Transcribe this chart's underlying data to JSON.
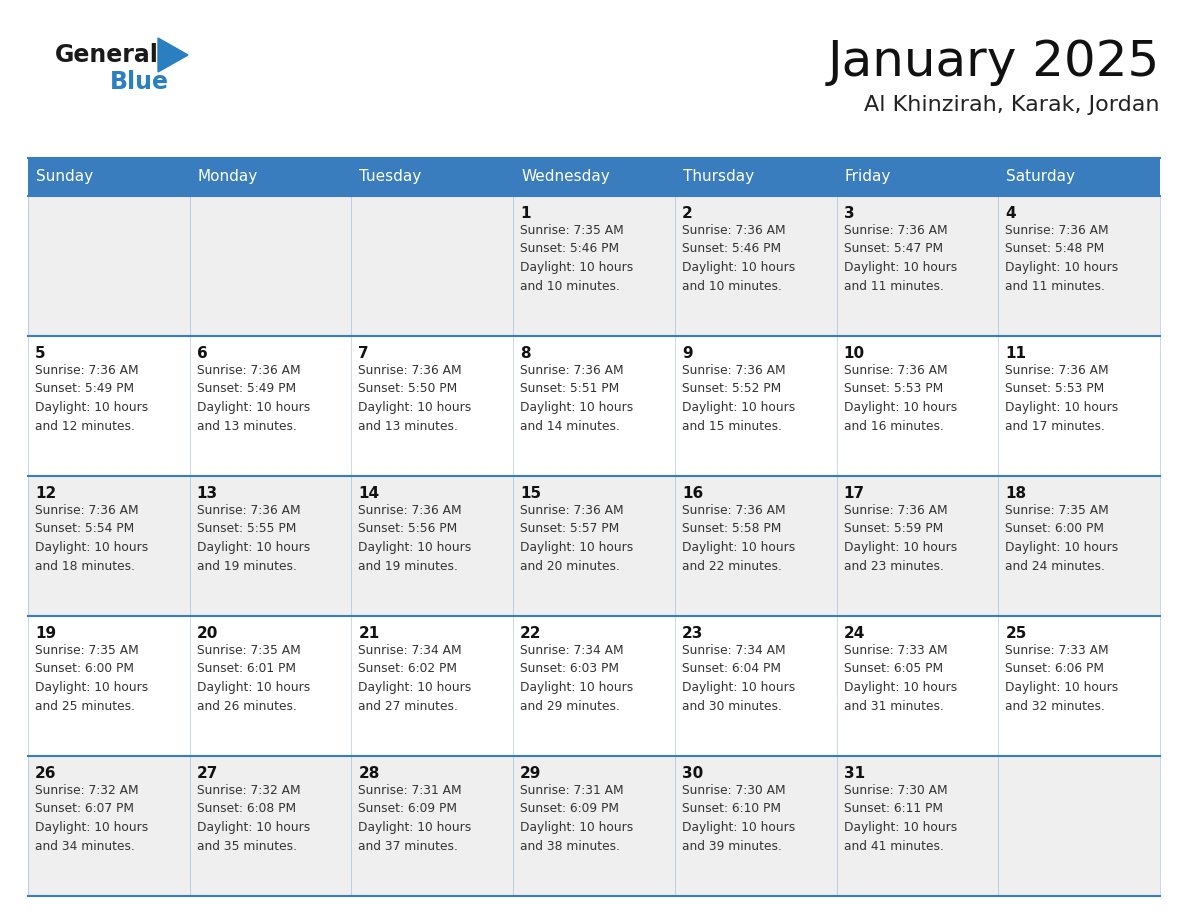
{
  "title": "January 2025",
  "subtitle": "Al Khinzirah, Karak, Jordan",
  "header_bg_color": "#3A7DBF",
  "header_text_color": "#FFFFFF",
  "day_names": [
    "Sunday",
    "Monday",
    "Tuesday",
    "Wednesday",
    "Thursday",
    "Friday",
    "Saturday"
  ],
  "row_bg_colors": [
    "#EFEFEF",
    "#FFFFFF"
  ],
  "cell_border_color": "#3A7DBF",
  "date_text_color": "#111111",
  "info_text_color": "#333333",
  "logo_general_color": "#1A1A1A",
  "logo_blue_color": "#2A7FC1",
  "calendar_data": [
    [
      {
        "day": 0,
        "info": ""
      },
      {
        "day": 0,
        "info": ""
      },
      {
        "day": 0,
        "info": ""
      },
      {
        "day": 1,
        "info": "Sunrise: 7:35 AM\nSunset: 5:46 PM\nDaylight: 10 hours\nand 10 minutes."
      },
      {
        "day": 2,
        "info": "Sunrise: 7:36 AM\nSunset: 5:46 PM\nDaylight: 10 hours\nand 10 minutes."
      },
      {
        "day": 3,
        "info": "Sunrise: 7:36 AM\nSunset: 5:47 PM\nDaylight: 10 hours\nand 11 minutes."
      },
      {
        "day": 4,
        "info": "Sunrise: 7:36 AM\nSunset: 5:48 PM\nDaylight: 10 hours\nand 11 minutes."
      }
    ],
    [
      {
        "day": 5,
        "info": "Sunrise: 7:36 AM\nSunset: 5:49 PM\nDaylight: 10 hours\nand 12 minutes."
      },
      {
        "day": 6,
        "info": "Sunrise: 7:36 AM\nSunset: 5:49 PM\nDaylight: 10 hours\nand 13 minutes."
      },
      {
        "day": 7,
        "info": "Sunrise: 7:36 AM\nSunset: 5:50 PM\nDaylight: 10 hours\nand 13 minutes."
      },
      {
        "day": 8,
        "info": "Sunrise: 7:36 AM\nSunset: 5:51 PM\nDaylight: 10 hours\nand 14 minutes."
      },
      {
        "day": 9,
        "info": "Sunrise: 7:36 AM\nSunset: 5:52 PM\nDaylight: 10 hours\nand 15 minutes."
      },
      {
        "day": 10,
        "info": "Sunrise: 7:36 AM\nSunset: 5:53 PM\nDaylight: 10 hours\nand 16 minutes."
      },
      {
        "day": 11,
        "info": "Sunrise: 7:36 AM\nSunset: 5:53 PM\nDaylight: 10 hours\nand 17 minutes."
      }
    ],
    [
      {
        "day": 12,
        "info": "Sunrise: 7:36 AM\nSunset: 5:54 PM\nDaylight: 10 hours\nand 18 minutes."
      },
      {
        "day": 13,
        "info": "Sunrise: 7:36 AM\nSunset: 5:55 PM\nDaylight: 10 hours\nand 19 minutes."
      },
      {
        "day": 14,
        "info": "Sunrise: 7:36 AM\nSunset: 5:56 PM\nDaylight: 10 hours\nand 19 minutes."
      },
      {
        "day": 15,
        "info": "Sunrise: 7:36 AM\nSunset: 5:57 PM\nDaylight: 10 hours\nand 20 minutes."
      },
      {
        "day": 16,
        "info": "Sunrise: 7:36 AM\nSunset: 5:58 PM\nDaylight: 10 hours\nand 22 minutes."
      },
      {
        "day": 17,
        "info": "Sunrise: 7:36 AM\nSunset: 5:59 PM\nDaylight: 10 hours\nand 23 minutes."
      },
      {
        "day": 18,
        "info": "Sunrise: 7:35 AM\nSunset: 6:00 PM\nDaylight: 10 hours\nand 24 minutes."
      }
    ],
    [
      {
        "day": 19,
        "info": "Sunrise: 7:35 AM\nSunset: 6:00 PM\nDaylight: 10 hours\nand 25 minutes."
      },
      {
        "day": 20,
        "info": "Sunrise: 7:35 AM\nSunset: 6:01 PM\nDaylight: 10 hours\nand 26 minutes."
      },
      {
        "day": 21,
        "info": "Sunrise: 7:34 AM\nSunset: 6:02 PM\nDaylight: 10 hours\nand 27 minutes."
      },
      {
        "day": 22,
        "info": "Sunrise: 7:34 AM\nSunset: 6:03 PM\nDaylight: 10 hours\nand 29 minutes."
      },
      {
        "day": 23,
        "info": "Sunrise: 7:34 AM\nSunset: 6:04 PM\nDaylight: 10 hours\nand 30 minutes."
      },
      {
        "day": 24,
        "info": "Sunrise: 7:33 AM\nSunset: 6:05 PM\nDaylight: 10 hours\nand 31 minutes."
      },
      {
        "day": 25,
        "info": "Sunrise: 7:33 AM\nSunset: 6:06 PM\nDaylight: 10 hours\nand 32 minutes."
      }
    ],
    [
      {
        "day": 26,
        "info": "Sunrise: 7:32 AM\nSunset: 6:07 PM\nDaylight: 10 hours\nand 34 minutes."
      },
      {
        "day": 27,
        "info": "Sunrise: 7:32 AM\nSunset: 6:08 PM\nDaylight: 10 hours\nand 35 minutes."
      },
      {
        "day": 28,
        "info": "Sunrise: 7:31 AM\nSunset: 6:09 PM\nDaylight: 10 hours\nand 37 minutes."
      },
      {
        "day": 29,
        "info": "Sunrise: 7:31 AM\nSunset: 6:09 PM\nDaylight: 10 hours\nand 38 minutes."
      },
      {
        "day": 30,
        "info": "Sunrise: 7:30 AM\nSunset: 6:10 PM\nDaylight: 10 hours\nand 39 minutes."
      },
      {
        "day": 31,
        "info": "Sunrise: 7:30 AM\nSunset: 6:11 PM\nDaylight: 10 hours\nand 41 minutes."
      },
      {
        "day": 0,
        "info": ""
      }
    ]
  ]
}
